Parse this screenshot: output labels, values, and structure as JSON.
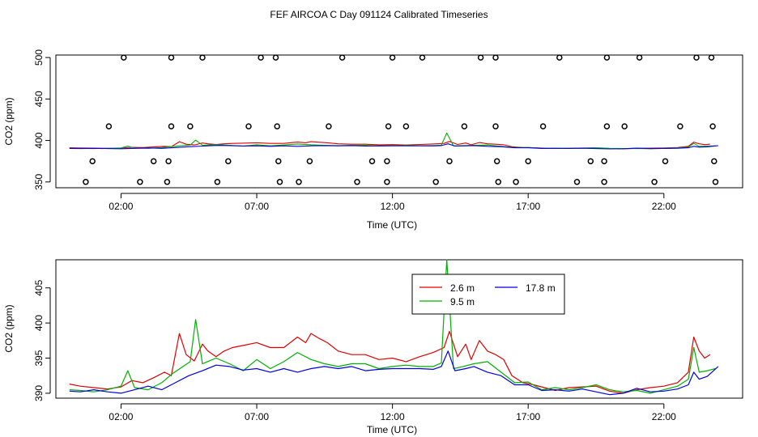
{
  "title": "FEF AIRCOA C  Day 091124  Calibrated Timeseries",
  "chart_data": [
    {
      "type": "scatter",
      "panel": "top",
      "xlabel": "Time (UTC)",
      "ylabel": "CO2 (ppm)",
      "xlim": [
        -0.4,
        24.9
      ],
      "ylim": [
        343,
        503
      ],
      "x_ticks": [
        {
          "value": 2,
          "label": "02:00"
        },
        {
          "value": 7,
          "label": "07:00"
        },
        {
          "value": 12,
          "label": "12:00"
        },
        {
          "value": 17,
          "label": "17:00"
        },
        {
          "value": 22,
          "label": "22:00"
        }
      ],
      "y_ticks": [
        {
          "value": 350,
          "label": "350"
        },
        {
          "value": 400,
          "label": "400"
        },
        {
          "value": 450,
          "label": "450"
        },
        {
          "value": 500,
          "label": "500"
        }
      ],
      "circle_points": [
        [
          2.1,
          500
        ],
        [
          3.85,
          500
        ],
        [
          5.0,
          500
        ],
        [
          7.15,
          500
        ],
        [
          7.7,
          500
        ],
        [
          10.15,
          500
        ],
        [
          12.0,
          500
        ],
        [
          13.1,
          500
        ],
        [
          15.25,
          500
        ],
        [
          15.8,
          500
        ],
        [
          18.15,
          500
        ],
        [
          19.9,
          500
        ],
        [
          21.1,
          500
        ],
        [
          23.2,
          500
        ],
        [
          23.75,
          500
        ],
        [
          1.55,
          417
        ],
        [
          3.85,
          417
        ],
        [
          4.55,
          417
        ],
        [
          6.7,
          417
        ],
        [
          7.75,
          417
        ],
        [
          9.65,
          417
        ],
        [
          11.85,
          417
        ],
        [
          12.5,
          417
        ],
        [
          14.65,
          417
        ],
        [
          15.8,
          417
        ],
        [
          17.55,
          417
        ],
        [
          19.9,
          417
        ],
        [
          20.55,
          417
        ],
        [
          22.6,
          417
        ],
        [
          23.8,
          417
        ],
        [
          0.95,
          375
        ],
        [
          3.2,
          375
        ],
        [
          3.75,
          375
        ],
        [
          5.95,
          375
        ],
        [
          7.8,
          375
        ],
        [
          8.95,
          375
        ],
        [
          11.25,
          375
        ],
        [
          11.8,
          375
        ],
        [
          14.1,
          375
        ],
        [
          15.85,
          375
        ],
        [
          17.0,
          375
        ],
        [
          19.3,
          375
        ],
        [
          19.8,
          375
        ],
        [
          22.05,
          375
        ],
        [
          23.85,
          375
        ],
        [
          0.7,
          350
        ],
        [
          2.7,
          350
        ],
        [
          3.7,
          350
        ],
        [
          5.55,
          350
        ],
        [
          7.85,
          350
        ],
        [
          8.55,
          350
        ],
        [
          10.7,
          350
        ],
        [
          11.8,
          350
        ],
        [
          13.6,
          350
        ],
        [
          15.9,
          350
        ],
        [
          16.55,
          350
        ],
        [
          18.8,
          350
        ],
        [
          19.8,
          350
        ],
        [
          21.65,
          350
        ],
        [
          23.9,
          350
        ]
      ],
      "series": [
        {
          "name": "2.6 m",
          "color": "#e00000"
        },
        {
          "name": "9.5 m",
          "color": "#00b000"
        },
        {
          "name": "17.8 m",
          "color": "#0000e0"
        }
      ]
    },
    {
      "type": "line",
      "panel": "bottom",
      "xlabel": "Time (UTC)",
      "ylabel": "CO2 (ppm)",
      "xlim": [
        -0.4,
        24.9
      ],
      "ylim": [
        389.3,
        409.0
      ],
      "x_ticks": [
        {
          "value": 2,
          "label": "02:00"
        },
        {
          "value": 7,
          "label": "07:00"
        },
        {
          "value": 12,
          "label": "12:00"
        },
        {
          "value": 17,
          "label": "17:00"
        },
        {
          "value": 22,
          "label": "22:00"
        }
      ],
      "y_ticks": [
        {
          "value": 390,
          "label": "390"
        },
        {
          "value": 395,
          "label": "395"
        },
        {
          "value": 400,
          "label": "400"
        },
        {
          "value": 405,
          "label": "405"
        }
      ],
      "legend": {
        "position": "top-center",
        "entries": [
          "2.6 m",
          "17.8 m",
          "9.5 m"
        ]
      },
      "series": [
        {
          "name": "2.6 m",
          "color": "#e00000",
          "points": [
            [
              0.1,
              391.3
            ],
            [
              0.5,
              391.0
            ],
            [
              1.0,
              390.8
            ],
            [
              1.5,
              390.6
            ],
            [
              2.0,
              390.9
            ],
            [
              2.4,
              391.8
            ],
            [
              2.8,
              391.5
            ],
            [
              3.2,
              392.2
            ],
            [
              3.6,
              393.0
            ],
            [
              3.85,
              392.5
            ],
            [
              4.15,
              398.5
            ],
            [
              4.4,
              395.5
            ],
            [
              4.7,
              394.6
            ],
            [
              5.0,
              397.0
            ],
            [
              5.2,
              396.0
            ],
            [
              5.5,
              395.2
            ],
            [
              5.8,
              396.0
            ],
            [
              6.1,
              396.5
            ],
            [
              6.5,
              396.8
            ],
            [
              7.0,
              397.2
            ],
            [
              7.5,
              396.5
            ],
            [
              8.0,
              396.5
            ],
            [
              8.5,
              398.0
            ],
            [
              8.8,
              397.2
            ],
            [
              9.0,
              398.5
            ],
            [
              9.3,
              397.8
            ],
            [
              9.6,
              397.2
            ],
            [
              10.0,
              396.0
            ],
            [
              10.5,
              395.5
            ],
            [
              11.0,
              395.5
            ],
            [
              11.5,
              394.8
            ],
            [
              12.0,
              395.0
            ],
            [
              12.5,
              394.5
            ],
            [
              13.0,
              395.2
            ],
            [
              13.5,
              395.8
            ],
            [
              13.9,
              396.5
            ],
            [
              14.1,
              398.8
            ],
            [
              14.4,
              395.2
            ],
            [
              14.7,
              397.0
            ],
            [
              14.9,
              394.8
            ],
            [
              15.2,
              397.5
            ],
            [
              15.5,
              396.0
            ],
            [
              15.8,
              395.5
            ],
            [
              16.1,
              394.8
            ],
            [
              16.4,
              392.5
            ],
            [
              16.8,
              391.5
            ],
            [
              17.2,
              391.2
            ],
            [
              17.6,
              390.8
            ],
            [
              18.0,
              390.4
            ],
            [
              18.5,
              390.8
            ],
            [
              19.0,
              390.9
            ],
            [
              19.5,
              391.0
            ],
            [
              20.0,
              390.3
            ],
            [
              20.5,
              390.0
            ],
            [
              21.0,
              390.5
            ],
            [
              21.5,
              390.8
            ],
            [
              22.0,
              391.0
            ],
            [
              22.5,
              391.5
            ],
            [
              22.9,
              393.0
            ],
            [
              23.1,
              398.0
            ],
            [
              23.3,
              396.0
            ],
            [
              23.5,
              395.0
            ],
            [
              23.7,
              395.5
            ]
          ]
        },
        {
          "name": "9.5 m",
          "color": "#00b000",
          "points": [
            [
              0.1,
              390.5
            ],
            [
              0.5,
              390.4
            ],
            [
              1.0,
              390.2
            ],
            [
              1.5,
              390.5
            ],
            [
              2.0,
              391.0
            ],
            [
              2.25,
              393.2
            ],
            [
              2.5,
              390.8
            ],
            [
              3.0,
              390.5
            ],
            [
              3.5,
              391.5
            ],
            [
              3.9,
              392.8
            ],
            [
              4.2,
              393.6
            ],
            [
              4.55,
              394.5
            ],
            [
              4.75,
              400.5
            ],
            [
              5.0,
              394.2
            ],
            [
              5.5,
              395.0
            ],
            [
              6.0,
              394.2
            ],
            [
              6.5,
              393.2
            ],
            [
              7.0,
              394.8
            ],
            [
              7.5,
              393.5
            ],
            [
              8.0,
              394.5
            ],
            [
              8.5,
              395.8
            ],
            [
              9.0,
              394.8
            ],
            [
              9.5,
              394.2
            ],
            [
              10.0,
              393.8
            ],
            [
              10.5,
              394.2
            ],
            [
              11.0,
              394.2
            ],
            [
              11.5,
              393.5
            ],
            [
              12.0,
              393.8
            ],
            [
              12.5,
              394.0
            ],
            [
              13.0,
              393.8
            ],
            [
              13.5,
              393.8
            ],
            [
              13.8,
              394.3
            ],
            [
              14.0,
              409.0
            ],
            [
              14.25,
              393.5
            ],
            [
              14.6,
              393.8
            ],
            [
              15.0,
              394.2
            ],
            [
              15.5,
              394.5
            ],
            [
              16.0,
              393.0
            ],
            [
              16.5,
              391.5
            ],
            [
              17.0,
              391.6
            ],
            [
              17.5,
              390.5
            ],
            [
              18.0,
              390.8
            ],
            [
              18.5,
              390.5
            ],
            [
              19.0,
              390.8
            ],
            [
              19.5,
              391.2
            ],
            [
              20.0,
              390.5
            ],
            [
              20.5,
              390.2
            ],
            [
              21.0,
              390.4
            ],
            [
              21.5,
              390.0
            ],
            [
              22.0,
              390.5
            ],
            [
              22.5,
              391.0
            ],
            [
              22.9,
              392.0
            ],
            [
              23.1,
              396.5
            ],
            [
              23.3,
              393.0
            ],
            [
              23.6,
              393.2
            ],
            [
              23.9,
              393.5
            ]
          ]
        },
        {
          "name": "17.8 m",
          "color": "#0000e0",
          "points": [
            [
              0.1,
              390.3
            ],
            [
              0.5,
              390.2
            ],
            [
              1.0,
              390.5
            ],
            [
              1.5,
              390.2
            ],
            [
              2.0,
              390.0
            ],
            [
              2.5,
              390.5
            ],
            [
              3.0,
              391.0
            ],
            [
              3.5,
              390.5
            ],
            [
              4.0,
              391.5
            ],
            [
              4.5,
              392.5
            ],
            [
              5.0,
              393.2
            ],
            [
              5.5,
              394.0
            ],
            [
              6.0,
              393.8
            ],
            [
              6.5,
              393.3
            ],
            [
              7.0,
              393.5
            ],
            [
              7.5,
              393.0
            ],
            [
              8.0,
              393.5
            ],
            [
              8.5,
              393.0
            ],
            [
              9.0,
              393.5
            ],
            [
              9.5,
              393.8
            ],
            [
              10.0,
              393.5
            ],
            [
              10.5,
              393.8
            ],
            [
              11.0,
              393.2
            ],
            [
              11.5,
              393.4
            ],
            [
              12.0,
              393.5
            ],
            [
              12.5,
              393.5
            ],
            [
              13.0,
              393.5
            ],
            [
              13.5,
              393.4
            ],
            [
              13.8,
              393.8
            ],
            [
              14.05,
              396.0
            ],
            [
              14.3,
              393.2
            ],
            [
              14.7,
              393.5
            ],
            [
              15.0,
              393.8
            ],
            [
              15.5,
              393.0
            ],
            [
              16.0,
              392.5
            ],
            [
              16.5,
              391.2
            ],
            [
              17.0,
              391.2
            ],
            [
              17.5,
              390.4
            ],
            [
              18.0,
              390.5
            ],
            [
              18.5,
              390.3
            ],
            [
              19.0,
              390.6
            ],
            [
              19.5,
              390.2
            ],
            [
              20.0,
              389.8
            ],
            [
              20.5,
              390.0
            ],
            [
              21.0,
              390.7
            ],
            [
              21.5,
              390.2
            ],
            [
              22.0,
              390.3
            ],
            [
              22.5,
              390.6
            ],
            [
              22.9,
              391.2
            ],
            [
              23.1,
              393.0
            ],
            [
              23.3,
              392.0
            ],
            [
              23.6,
              392.4
            ],
            [
              24.0,
              393.8
            ]
          ]
        }
      ]
    }
  ]
}
